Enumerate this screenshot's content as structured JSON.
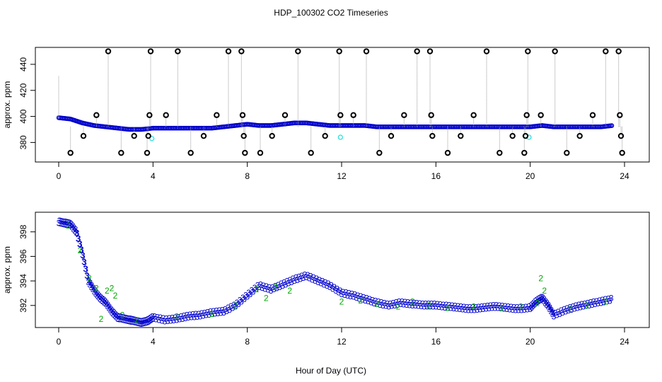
{
  "title": "HDP_100302  CO2 Timeseries",
  "xlabel": "Hour of Day (UTC)",
  "colors": {
    "main": "#0000cc",
    "green": "#00aa00",
    "cyan": "#22dddd",
    "outlier": "#000000",
    "spike": "#999999"
  },
  "chart_data": [
    {
      "type": "scatter",
      "panel": "top",
      "ylabel": "approx. ppm",
      "xlim": [
        0,
        24
      ],
      "ylim": [
        365,
        453
      ],
      "xticks": [
        0,
        4,
        8,
        12,
        16,
        20,
        24
      ],
      "yticks": [
        380,
        400,
        420,
        440
      ],
      "grid": false,
      "series": [
        {
          "marker": "open circle",
          "color": "#0000cc",
          "x": [
            0,
            0.5,
            1,
            1.5,
            2,
            2.5,
            3,
            3.5,
            4,
            4.5,
            5,
            5.5,
            6,
            6.5,
            7,
            7.5,
            8,
            8.5,
            9,
            9.5,
            10,
            10.5,
            11,
            11.5,
            12,
            12.5,
            13,
            13.5,
            14,
            14.5,
            15,
            15.5,
            16,
            16.5,
            17,
            17.5,
            18,
            18.5,
            19,
            19.5,
            20,
            20.5,
            21,
            21.5,
            22,
            22.5,
            23,
            23.5
          ],
          "y": [
            399,
            398,
            395,
            393,
            392,
            391,
            390,
            390,
            391,
            391,
            391,
            391,
            391,
            391,
            392,
            393,
            394,
            393,
            393,
            394,
            395,
            395,
            394,
            393,
            393,
            393,
            393,
            392,
            392,
            392,
            392,
            392,
            392,
            392,
            392,
            392,
            392,
            392,
            392,
            392,
            392,
            393,
            392,
            392,
            392,
            392,
            392,
            393
          ]
        },
        {
          "marker": "bold open circle (outliers)",
          "color": "#000000",
          "x": [
            0.5,
            1.05,
            1.6,
            2.1,
            2.65,
            3.2,
            3.75,
            3.8,
            3.85,
            3.9,
            4.55,
            5.05,
            5.6,
            6.15,
            6.7,
            7.2,
            7.75,
            7.8,
            7.85,
            7.9,
            8.55,
            9.05,
            9.6,
            10.15,
            10.7,
            11.3,
            11.9,
            11.95,
            12.5,
            13.05,
            13.6,
            14.1,
            14.65,
            15.2,
            15.75,
            15.8,
            15.85,
            16.5,
            17.05,
            17.6,
            18.15,
            18.7,
            19.25,
            19.75,
            19.8,
            19.85,
            19.9,
            20.45,
            21.05,
            21.55,
            22.1,
            22.65,
            23.2,
            23.75,
            23.8,
            23.85,
            23.9
          ],
          "y": [
            372,
            385,
            401,
            450,
            372,
            385,
            372,
            385,
            401,
            450,
            401,
            450,
            372,
            385,
            401,
            450,
            450,
            401,
            385,
            372,
            372,
            385,
            401,
            450,
            372,
            385,
            450,
            401,
            401,
            450,
            372,
            385,
            401,
            450,
            450,
            401,
            385,
            372,
            385,
            401,
            450,
            372,
            385,
            372,
            385,
            401,
            450,
            401,
            450,
            372,
            385,
            401,
            450,
            450,
            401,
            385,
            372
          ]
        }
      ]
    },
    {
      "type": "scatter",
      "panel": "bottom",
      "ylabel": "approx. ppm",
      "xlim": [
        0,
        24
      ],
      "ylim": [
        390.2,
        399.6
      ],
      "xticks": [
        0,
        4,
        8,
        12,
        16,
        20,
        24
      ],
      "yticks": [
        392,
        394,
        396,
        398
      ],
      "grid": false,
      "series": [
        {
          "marker": "3",
          "color": "#0000cc",
          "x": [
            0,
            0.25,
            0.5,
            0.75,
            1,
            1.25,
            1.5,
            1.75,
            2,
            2.25,
            2.5,
            2.75,
            3,
            3.25,
            3.5,
            3.75,
            4,
            4.5,
            5,
            5.5,
            6,
            6.5,
            7,
            7.5,
            8,
            8.5,
            9,
            9.5,
            10,
            10.5,
            11,
            11.5,
            12,
            12.5,
            13,
            13.5,
            14,
            14.5,
            15,
            15.5,
            16,
            16.5,
            17,
            17.5,
            18,
            18.5,
            19,
            19.5,
            20,
            20.25,
            20.5,
            20.75,
            21,
            21.5,
            22,
            22.5,
            23,
            23.5
          ],
          "y": [
            398.8,
            398.7,
            398.6,
            398,
            396.2,
            394,
            393.2,
            392.6,
            392.2,
            391.5,
            391,
            390.9,
            390.8,
            390.7,
            390.6,
            390.7,
            391,
            390.8,
            390.9,
            391.1,
            391.2,
            391.4,
            391.5,
            392,
            392.8,
            393.6,
            393.3,
            393.7,
            394.1,
            394.4,
            394,
            393.6,
            393,
            392.8,
            392.5,
            392.2,
            392,
            392.2,
            392.1,
            392,
            392,
            391.9,
            391.8,
            391.7,
            391.8,
            391.9,
            391.8,
            391.7,
            391.8,
            392.3,
            392.6,
            392,
            391.2,
            391.6,
            391.9,
            392.1,
            392.3,
            392.5
          ]
        },
        {
          "marker": "2",
          "color": "#00aa00",
          "x": [
            0.4,
            0.9,
            1.3,
            1.6,
            1.8,
            2.05,
            2.25,
            2.4,
            2.7,
            3.3,
            5,
            6.5,
            7.5,
            8.4,
            8.8,
            9.2,
            9.8,
            12,
            12.8,
            13.5,
            14.4,
            15,
            15.7,
            16.5,
            17.6,
            18.8,
            19.6,
            20.3,
            20.45,
            20.6,
            21.7,
            22.4,
            23.2
          ],
          "y": [
            398.5,
            396.5,
            394.2,
            393.4,
            390.9,
            393.2,
            393.4,
            392.8,
            391.2,
            390.8,
            391.1,
            391.3,
            392,
            393.3,
            392.6,
            393.5,
            393.2,
            392.3,
            392.4,
            392.1,
            391.9,
            392.3,
            392,
            391.8,
            391.9,
            391.8,
            391.9,
            392.2,
            394.2,
            393.2,
            391.7,
            392,
            392.3
          ]
        }
      ]
    }
  ]
}
